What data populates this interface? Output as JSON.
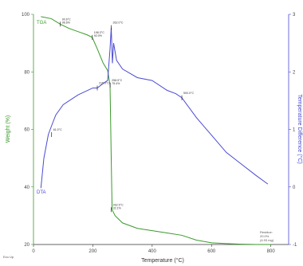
{
  "chart_data": {
    "type": "line",
    "xlabel": "Temperature (°C)",
    "ylabel_left": "Weight (%)",
    "ylabel_right": "Temperature Difference (°C)",
    "xlim": [
      0,
      860
    ],
    "ylim_left": [
      20,
      100
    ],
    "ylim_right": [
      -1,
      3
    ],
    "x_ticks": [
      "0",
      "200",
      "400",
      "600",
      "800"
    ],
    "y_left_ticks": [
      "20",
      "40",
      "60",
      "80",
      "100"
    ],
    "y_right_ticks": [
      "-1",
      "0",
      "1",
      "2",
      "3"
    ],
    "colors": {
      "tga": "#3a9a2a",
      "dta": "#4a4ad4",
      "axis": "#4a4ad4"
    },
    "series": [
      {
        "name": "TGA",
        "axis": "left",
        "x": [
          25,
          60,
          90,
          120,
          150,
          180,
          198,
          215,
          235,
          250,
          258,
          262,
          265,
          275,
          300,
          350,
          400,
          450,
          500,
          550,
          600,
          650,
          700,
          750,
          800
        ],
        "y": [
          99.2,
          98.5,
          96.6,
          95.1,
          94.0,
          92.9,
          92.0,
          88.0,
          83.0,
          80.5,
          75.4,
          50.0,
          32.1,
          30.0,
          27.5,
          25.6,
          24.8,
          24.0,
          23.2,
          21.5,
          20.6,
          20.3,
          20.1,
          20.0,
          20.0
        ]
      },
      {
        "name": "DTA",
        "axis": "right",
        "x": [
          25,
          35,
          50,
          60,
          75,
          100,
          150,
          200,
          215,
          235,
          250,
          258,
          262,
          266,
          270,
          280,
          300,
          350,
          400,
          450,
          480,
          500,
          550,
          600,
          650,
          700,
          750,
          790
        ],
        "y": [
          -0.02,
          0.5,
          0.91,
          1.05,
          1.25,
          1.43,
          1.6,
          1.72,
          1.72,
          1.8,
          1.85,
          2.4,
          2.77,
          2.15,
          2.5,
          2.2,
          2.05,
          1.9,
          1.85,
          1.68,
          1.62,
          1.55,
          1.2,
          0.9,
          0.6,
          0.4,
          0.2,
          0.05
        ]
      }
    ],
    "annotations": [
      {
        "series": "TGA",
        "x": 90.6,
        "y": 96.6,
        "label1": "90.6°C",
        "label2": "96.6%"
      },
      {
        "series": "TGA",
        "x": 198.3,
        "y": 92.0,
        "label1": "198.3°C",
        "label2": "92.0%"
      },
      {
        "series": "TGA",
        "x": 258.5,
        "y": 75.4,
        "label1": "258.5°C",
        "label2": "75.4%"
      },
      {
        "series": "TGA",
        "x": 262.5,
        "y": 32.1,
        "label1": "262.5°C",
        "label2": "32.1%"
      },
      {
        "series": "DTA",
        "x": 61.0,
        "y": 0.91,
        "label1": "61.0°C",
        "label2": ""
      },
      {
        "series": "DTA",
        "x": 215.0,
        "y": 1.72,
        "label1": "215.0°C",
        "label2": ""
      },
      {
        "series": "DTA",
        "x": 262.0,
        "y": 2.77,
        "label1": "262.0°C",
        "label2": ""
      },
      {
        "series": "DTA",
        "x": 500.0,
        "y": 1.55,
        "label1": "500.0°C",
        "label2": ""
      }
    ],
    "residue_note": {
      "line1": "Residue:",
      "line2": "20.0%",
      "line3": "(4.93 mg)"
    },
    "footer_left": "Exo Up",
    "grid": false,
    "legend": "inline labels"
  }
}
